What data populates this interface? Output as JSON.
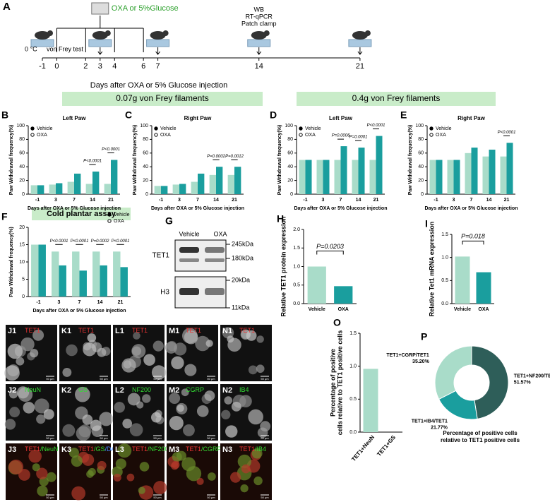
{
  "timeline": {
    "panel": "A",
    "agent": "OXA or 5%Glucose",
    "assays": [
      "WB",
      "RT-qPCR",
      "Patch clamp"
    ],
    "cold": "0 °C",
    "test": "von Frey test",
    "ticks": [
      -1,
      0,
      2,
      3,
      4,
      6,
      7,
      14,
      21
    ],
    "axis_label": "Days after OXA or 5% Glucose injection"
  },
  "banners": [
    "0.07g von Frey filaments",
    "0.4g von Frey filaments",
    "Cold plantar assay"
  ],
  "chart_data": [
    {
      "type": "bar",
      "panel": "B",
      "title": "Left Paw",
      "categories": [
        "-1",
        "3",
        "7",
        "14",
        "21"
      ],
      "series": [
        {
          "name": "Vehicle",
          "color": "#a9dcc9",
          "values": [
            13,
            14,
            18,
            15,
            15
          ]
        },
        {
          "name": "OXA",
          "color": "#1a9e9e",
          "values": [
            13,
            16,
            30,
            33,
            50
          ]
        }
      ],
      "p_values": [
        null,
        null,
        null,
        "P<0.0001",
        "P<0.0001"
      ],
      "ylim": [
        0,
        100
      ],
      "yticks": [
        0,
        20,
        40,
        60,
        80,
        100
      ],
      "y_label": "Paw Withdrawal frequency(%)",
      "x_label": "Days after OXA or 5% Glucose injection",
      "legend": "top-left"
    },
    {
      "type": "bar",
      "panel": "C",
      "title": "Right Paw",
      "categories": [
        "-1",
        "3",
        "7",
        "14",
        "21"
      ],
      "series": [
        {
          "name": "Vehicle",
          "color": "#a9dcc9",
          "values": [
            12,
            14,
            18,
            28,
            28
          ]
        },
        {
          "name": "OXA",
          "color": "#1a9e9e",
          "values": [
            12,
            15,
            30,
            40,
            40
          ]
        }
      ],
      "p_values": [
        null,
        null,
        null,
        "P=0.0002",
        "P=0.0012"
      ],
      "ylim": [
        0,
        100
      ],
      "yticks": [
        0,
        20,
        40,
        60,
        80,
        100
      ],
      "y_label": "Paw Withdrawal frequency(%)",
      "x_label": "Days after OXA or 5% Glucose injection",
      "legend": "top-left"
    },
    {
      "type": "bar",
      "panel": "D",
      "title": "Left Paw",
      "categories": [
        "-1",
        "3",
        "7",
        "14",
        "21"
      ],
      "series": [
        {
          "name": "Vehicle",
          "color": "#a9dcc9",
          "values": [
            50,
            50,
            50,
            50,
            50
          ]
        },
        {
          "name": "OXA",
          "color": "#1a9e9e",
          "values": [
            50,
            50,
            70,
            68,
            85
          ]
        }
      ],
      "p_values": [
        null,
        null,
        "P=0.0006",
        "P=0.0001",
        "P<0.0001"
      ],
      "ylim": [
        0,
        100
      ],
      "yticks": [
        0,
        20,
        40,
        60,
        80,
        100
      ],
      "y_label": "Paw Withdrawal frequency(%)",
      "x_label": "Days after OXA or 5% Glucose injection",
      "legend": "top-left"
    },
    {
      "type": "bar",
      "panel": "E",
      "title": "Right Paw",
      "categories": [
        "-1",
        "3",
        "7",
        "14",
        "21"
      ],
      "series": [
        {
          "name": "Vehicle",
          "color": "#a9dcc9",
          "values": [
            50,
            50,
            60,
            55,
            55
          ]
        },
        {
          "name": "OXA",
          "color": "#1a9e9e",
          "values": [
            50,
            50,
            68,
            65,
            75
          ]
        }
      ],
      "p_values": [
        null,
        null,
        null,
        null,
        "P<0.0001"
      ],
      "ylim": [
        0,
        100
      ],
      "yticks": [
        0,
        20,
        40,
        60,
        80,
        100
      ],
      "y_label": "Paw Withdrawal frequency(%)",
      "x_label": "Days after OXA or 5% Glucose injection",
      "legend": "top-left"
    },
    {
      "type": "bar",
      "panel": "F",
      "categories": [
        "-1",
        "3",
        "7",
        "14",
        "21"
      ],
      "series": [
        {
          "name": "Vehicle",
          "color": "#a9dcc9",
          "values": [
            15,
            13,
            13,
            13,
            13
          ]
        },
        {
          "name": "OXA",
          "color": "#1a9e9e",
          "values": [
            15,
            9,
            7.5,
            9,
            8.5
          ]
        }
      ],
      "p_values": [
        null,
        "P<0.0001",
        "P<0.0001",
        "P=0.0002",
        "P<0.0001"
      ],
      "ylim": [
        0,
        20
      ],
      "yticks": [
        0,
        5,
        10,
        15,
        20
      ],
      "y_label": "Paw Withdrawal frequency(%)",
      "x_label": "Days after OXA or 5% Glucose injection",
      "legend": "top-right"
    },
    {
      "type": "bar",
      "panel": "H",
      "categories": [
        "Vehicle",
        "OXA"
      ],
      "values": [
        1.0,
        0.47
      ],
      "colors": [
        "#a9dcc9",
        "#1a9e9e"
      ],
      "p_value": "P=0.0203",
      "ylim": [
        0,
        2
      ],
      "yticks": [
        {
          "value": 0,
          "label": "0.0"
        },
        {
          "value": 0.5,
          "label": "0.5"
        },
        {
          "value": 1,
          "label": "1.0"
        },
        {
          "value": 1.5,
          "label": "1.5"
        },
        {
          "value": 2,
          "label": "2.0"
        }
      ],
      "y_label": "Relative TET1 protein expression"
    },
    {
      "type": "bar",
      "panel": "I",
      "categories": [
        "Vehicle",
        "OXA"
      ],
      "values": [
        1.02,
        0.68
      ],
      "colors": [
        "#a9dcc9",
        "#1a9e9e"
      ],
      "p_value": "P=0.018",
      "ylim": [
        0,
        1.5
      ],
      "yticks": [
        {
          "value": 0,
          "label": "0.0"
        },
        {
          "value": 0.5,
          "label": "0.5"
        },
        {
          "value": 1,
          "label": "1.0"
        },
        {
          "value": 1.5,
          "label": "1.5"
        }
      ],
      "y_label": "Relative Tet1 mRNA expression"
    },
    {
      "type": "bar",
      "panel": "O",
      "categories": [
        "TET1+NeuN",
        "TET1+GS"
      ],
      "values": [
        0.96,
        0
      ],
      "colors": [
        "#a9dcc9",
        "#1a9e9e"
      ],
      "ylim": [
        0,
        1.5
      ],
      "yticks": [
        {
          "value": 0,
          "label": "0.0"
        },
        {
          "value": 0.5,
          "label": "0.5"
        },
        {
          "value": 1,
          "label": "1.0"
        },
        {
          "value": 1.5,
          "label": "1.5"
        }
      ],
      "y_label": [
        "Percentage of positive",
        "cells relative to TET1 positive cells"
      ]
    },
    {
      "type": "pie",
      "panel": "P",
      "categories": [
        "TET1+NF200/TET1",
        "TET1+IB4/TET1",
        "TET1+CGRP/TET1"
      ],
      "values": [
        51.57,
        21.77,
        35.2
      ],
      "value_labels": [
        "51.57%",
        "21.77%",
        "35.20%"
      ],
      "colors": [
        "#2e5e59",
        "#1a9e9e",
        "#a9dcc9"
      ],
      "title": [
        "Percentage of positive cells",
        "relative to TET1 positive cells"
      ]
    }
  ],
  "blot": {
    "panel": "G",
    "lanes": [
      "Vehicle",
      "OXA"
    ],
    "rows": [
      {
        "name": "TET1",
        "markers": [
          "245kDa",
          "180kDa"
        ]
      },
      {
        "name": "H3",
        "markers": [
          "20kDa",
          "11kDa"
        ]
      }
    ]
  },
  "images": [
    {
      "id": "J1",
      "parts": [
        "TET1"
      ],
      "colors": [
        "#e33"
      ],
      "scale": "50 μm"
    },
    {
      "id": "K1",
      "parts": [
        "TET1"
      ],
      "colors": [
        "#e33"
      ],
      "scale": "50 μm"
    },
    {
      "id": "L1",
      "parts": [
        "TET1"
      ],
      "colors": [
        "#e33"
      ],
      "scale": "50 μm"
    },
    {
      "id": "M1",
      "parts": [
        "TET1"
      ],
      "colors": [
        "#e33"
      ],
      "scale": "50 μm"
    },
    {
      "id": "N1",
      "parts": [
        "TET1"
      ],
      "colors": [
        "#e33"
      ],
      "scale": "50 μm"
    },
    {
      "id": "J2",
      "parts": [
        "NeuN"
      ],
      "colors": [
        "#3d3"
      ],
      "scale": "50 μm"
    },
    {
      "id": "K2",
      "parts": [
        "GS"
      ],
      "colors": [
        "#3d3"
      ],
      "scale": "50 μm"
    },
    {
      "id": "L2",
      "parts": [
        "NF200"
      ],
      "colors": [
        "#3d3"
      ],
      "scale": "50 μm"
    },
    {
      "id": "M2",
      "parts": [
        "CGRP"
      ],
      "colors": [
        "#3d3"
      ],
      "scale": "50 μm"
    },
    {
      "id": "N2",
      "parts": [
        "IB4"
      ],
      "colors": [
        "#3d3"
      ],
      "scale": "50 μm"
    },
    {
      "id": "J3",
      "parts": [
        "TET1",
        "/NeuN"
      ],
      "colors": [
        "#e33",
        "#3d3"
      ],
      "scale": "50 μm"
    },
    {
      "id": "K3",
      "parts": [
        "TET1",
        "/GS",
        "/DAPI"
      ],
      "colors": [
        "#e33",
        "#3d3",
        "#48f"
      ],
      "scale": "50 μm"
    },
    {
      "id": "L3",
      "parts": [
        "TET1",
        "/NF200"
      ],
      "colors": [
        "#e33",
        "#3d3"
      ],
      "scale": "50 μm"
    },
    {
      "id": "M3",
      "parts": [
        "TET1",
        "/CGRP"
      ],
      "colors": [
        "#e33",
        "#3d3"
      ],
      "scale": "50 μm"
    },
    {
      "id": "N3",
      "parts": [
        "TET1",
        "/IB4"
      ],
      "colors": [
        "#e33",
        "#3d3"
      ],
      "scale": "50 μm"
    }
  ]
}
